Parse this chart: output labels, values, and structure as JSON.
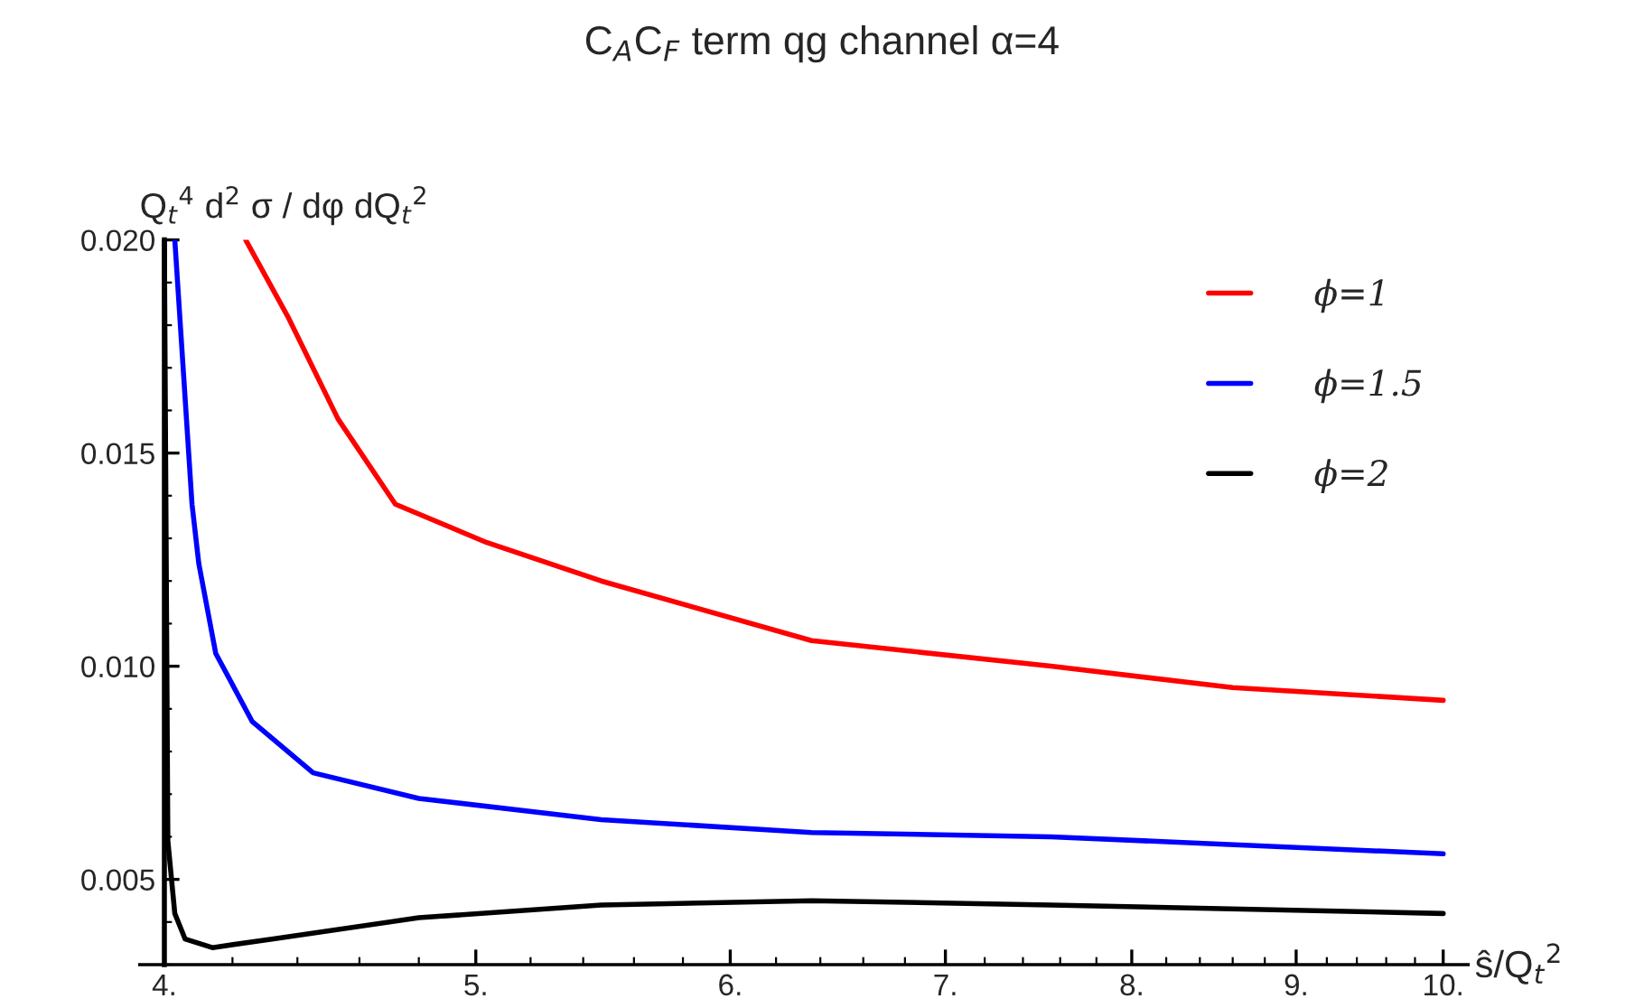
{
  "chart_data": {
    "type": "line",
    "title": "C$_{A}$C$_{F}$ term qg channel α=4",
    "ylabel": "Q$_{t}$$^{4}$ d$^{2}$ σ / dφ dQ$_{t}$$^{2}$",
    "xlabel": "ŝ/Q$_{t}$$^{2}$",
    "log": "x",
    "xlim": [
      3.93,
      10.18
    ],
    "xticks": [
      {
        "value": 4,
        "label": "4."
      },
      {
        "value": 5,
        "label": "5."
      },
      {
        "value": 6,
        "label": "6."
      },
      {
        "value": 7,
        "label": "7."
      },
      {
        "value": 8,
        "label": "8."
      },
      {
        "value": 9,
        "label": "9."
      },
      {
        "value": 10,
        "label": "10."
      }
    ],
    "ylim": [
      0.003,
      0.02
    ],
    "yticks": [
      {
        "value": 0.005,
        "label": "0.005"
      },
      {
        "value": 0.01,
        "label": "0.010"
      },
      {
        "value": 0.015,
        "label": "0.015"
      },
      {
        "value": 0.02,
        "label": "0.020"
      }
    ],
    "legend": "top right",
    "grid": false,
    "series": [
      {
        "name": "ϕ=1",
        "color": "#ff0000",
        "x": [
          4.24,
          4.37,
          4.53,
          4.72,
          5.04,
          5.47,
          6.36,
          7.55,
          8.6,
          10
        ],
        "values": [
          0.02,
          0.0182,
          0.0158,
          0.0138,
          0.0129,
          0.012,
          0.0106,
          0.01,
          0.0095,
          0.0092
        ]
      },
      {
        "name": "ϕ=1.5",
        "color": "#0000ff",
        "x": [
          4.03,
          4.08,
          4.1,
          4.15,
          4.26,
          4.45,
          4.8,
          5.47,
          6.36,
          7.55,
          10
        ],
        "values": [
          0.02,
          0.0138,
          0.0124,
          0.0103,
          0.0087,
          0.0075,
          0.0069,
          0.0064,
          0.0061,
          0.006,
          0.0056
        ]
      },
      {
        "name": "ϕ=2",
        "color": "#000000",
        "x": [
          4.0,
          4.01,
          4.03,
          4.06,
          4.14,
          4.32,
          4.8,
          5.47,
          6.36,
          7.55,
          10
        ],
        "values": [
          0.02,
          0.0059,
          0.0042,
          0.0036,
          0.0034,
          0.0036,
          0.0041,
          0.0044,
          0.0045,
          0.0044,
          0.0042
        ]
      }
    ]
  }
}
